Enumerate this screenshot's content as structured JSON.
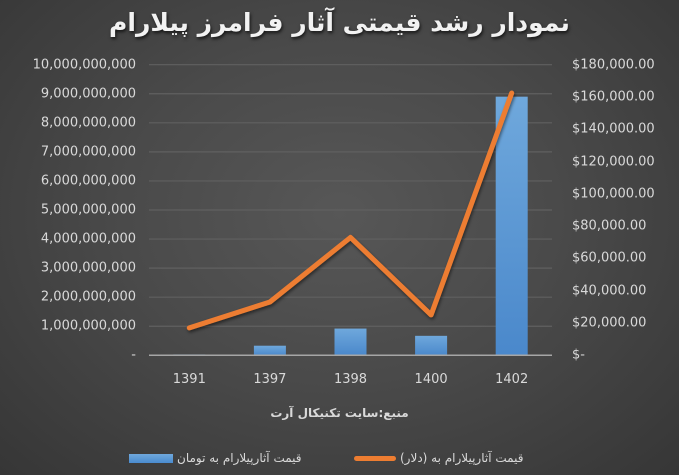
{
  "title": "نمودار رشد قیمتی آثار فرامرز پیلارام",
  "source": "منبع:سایت تکنیکال آرت",
  "legend": {
    "bar_label": "قیمت آثارپیلارام  به تومان",
    "line_label": "قیمت آثارپیلارام  به (دلار)"
  },
  "colors": {
    "bar": "#5b9bd5",
    "line": "#ed7d31",
    "gridline": "#606060",
    "axis": "#a6a6a6",
    "text": "#d9d9d9"
  },
  "left_axis_ticks": [
    "10,000,000,000",
    "9,000,000,000",
    "8,000,000,000",
    "7,000,000,000",
    "6,000,000,000",
    "5,000,000,000",
    "4,000,000,000",
    "3,000,000,000",
    "2,000,000,000",
    "1,000,000,000",
    "-"
  ],
  "right_axis_ticks": [
    "$180,000.00",
    "$160,000.00",
    "$140,000.00",
    "$120,000.00",
    "$100,000.00",
    "$80,000.00",
    "$60,000.00",
    "$40,000.00",
    "$20,000.00",
    "$-"
  ],
  "x_ticks": [
    "1391",
    "1397",
    "1398",
    "1400",
    "1402"
  ],
  "chart_data": {
    "type": "bar+line",
    "title": "نمودار رشد قیمتی آثار فرامرز پیلارام",
    "xlabel": "منبع:سایت تکنیکال آرت",
    "categories": [
      "1391",
      "1397",
      "1398",
      "1400",
      "1402"
    ],
    "series": [
      {
        "name": "قیمت آثارپیلارام  به تومان",
        "type": "bar",
        "axis": "left",
        "values": [
          30000000,
          330000000,
          920000000,
          670000000,
          8900000000
        ]
      },
      {
        "name": "قیمت آثارپیلارام  به (دلار)",
        "type": "line",
        "axis": "right",
        "values": [
          17000,
          33000,
          73000,
          25000,
          162500
        ]
      }
    ],
    "y_left": {
      "range": [
        0,
        10000000000
      ],
      "step": 1000000000
    },
    "y_right": {
      "range": [
        0,
        180000
      ],
      "step": 20000,
      "format": "currency USD"
    },
    "grid": true,
    "legend_position": "bottom"
  }
}
